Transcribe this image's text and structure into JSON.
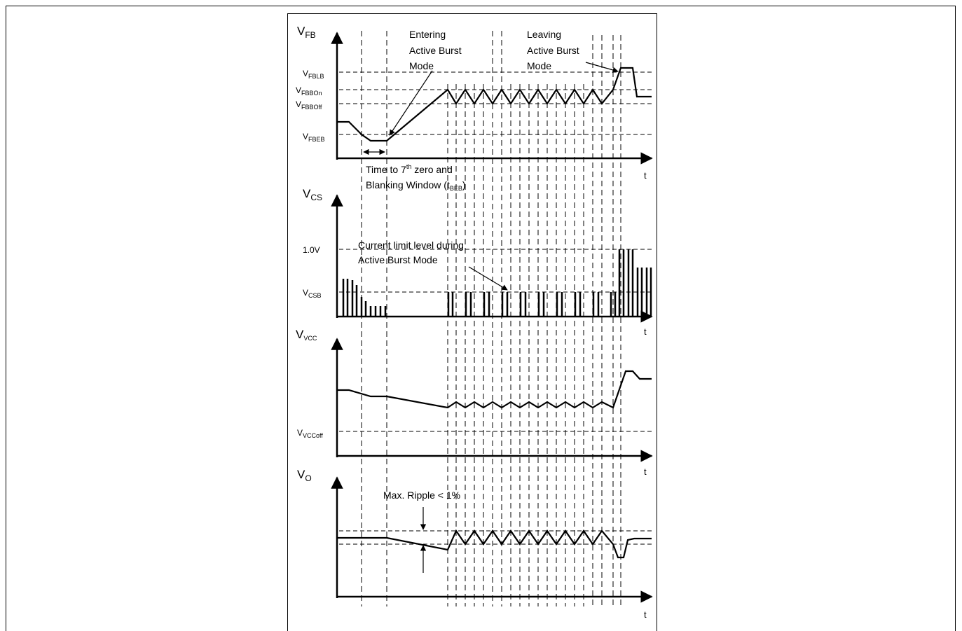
{
  "panels": [
    {
      "id": "vfb",
      "axis_label": "V",
      "axis_label_sub": "FB",
      "time_label": "t",
      "levels": [
        {
          "id": "vfblb",
          "label": "V",
          "sub": "FBLB"
        },
        {
          "id": "vfbbon",
          "label": "V",
          "sub": "FBBOn"
        },
        {
          "id": "vfbboff",
          "label": "V",
          "sub": "FBBOff"
        },
        {
          "id": "vfbeb",
          "label": "V",
          "sub": "FBEB"
        }
      ]
    },
    {
      "id": "vcs",
      "axis_label": "V",
      "axis_label_sub": "CS",
      "time_label": "t",
      "levels": [
        {
          "id": "one-volt",
          "label": "1.0V",
          "sub": ""
        },
        {
          "id": "vcsb",
          "label": "V",
          "sub": "CSB"
        }
      ]
    },
    {
      "id": "vvcc",
      "axis_label": "V",
      "axis_label_sub": "VCC",
      "time_label": "t",
      "levels": [
        {
          "id": "vvccoff",
          "label": "V",
          "sub": "VCCoff"
        }
      ]
    },
    {
      "id": "vo",
      "axis_label": "V",
      "axis_label_sub": "O",
      "time_label": "t",
      "levels": []
    }
  ],
  "annotations": {
    "entering": [
      "Entering",
      "Active Burst",
      "Mode"
    ],
    "leaving": [
      "Leaving",
      "Active Burst",
      "Mode"
    ],
    "blanking_line1_pre": "Time to 7",
    "blanking_line1_sup": "th",
    "blanking_line1_post": " zero and",
    "blanking_line2_pre": "Blanking Window (t",
    "blanking_line2_sub": "BEB",
    "blanking_line2_post": ")",
    "current_limit": [
      "Current limit level during",
      "Active Burst Mode"
    ],
    "ripple": "Max. Ripple < 1%"
  },
  "colors": {
    "line": "#000000",
    "background": "#ffffff"
  }
}
